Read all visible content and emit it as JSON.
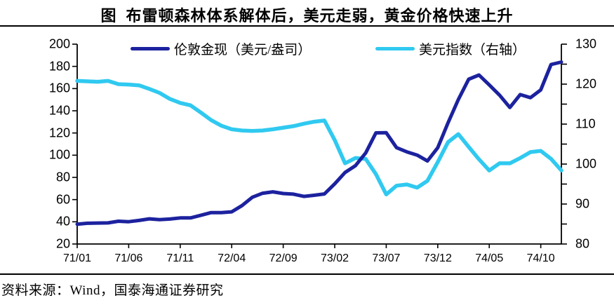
{
  "title": "图  布雷顿森林体系解体后，美元走弱，黄金价格快速上升",
  "source": "资料来源：Wind，国泰海通证券研究",
  "colors": {
    "gold_line": "#1c229e",
    "usd_line": "#30c9f0",
    "axis": "#000000"
  },
  "legend": [
    {
      "label": "伦敦金现（美元/盎司）",
      "series": "gold"
    },
    {
      "label": "美元指数（右轴）",
      "series": "usd"
    }
  ],
  "chart_data": {
    "type": "line",
    "title": "布雷顿森林体系解体后，美元走弱，黄金价格快速上升",
    "x_unit": "month",
    "x_start": "1971-01",
    "x_months": 48,
    "x_tick_labels": [
      "71/01",
      "71/06",
      "71/11",
      "72/04",
      "72/09",
      "73/02",
      "73/07",
      "73/12",
      "74/05",
      "74/10"
    ],
    "x_tick_month_index": [
      0,
      5,
      10,
      15,
      20,
      25,
      30,
      35,
      40,
      45
    ],
    "left_axis": {
      "min": 20,
      "max": 200,
      "ticks": [
        200,
        180,
        160,
        140,
        120,
        100,
        80,
        60,
        40,
        20
      ]
    },
    "right_axis": {
      "min": 80,
      "max": 130,
      "tick_step": 5,
      "labels": [
        130,
        120,
        110,
        100,
        90,
        80
      ]
    },
    "grid": false,
    "legend_position": "top-inside",
    "series": [
      {
        "name": "伦敦金现（美元/盎司）",
        "axis": "left",
        "values": [
          37.9,
          38.7,
          38.9,
          39.0,
          40.5,
          40.1,
          41.2,
          42.7,
          42.0,
          42.5,
          43.5,
          43.5,
          45.8,
          48.3,
          48.3,
          49.0,
          54.6,
          62.1,
          65.7,
          67.0,
          65.5,
          64.9,
          62.9,
          63.9,
          65.1,
          74.2,
          84.4,
          90.5,
          102.0,
          120.1,
          120.2,
          106.8,
          103.0,
          100.1,
          94.8,
          106.7,
          129.2,
          150.2,
          168.4,
          172.2,
          163.3,
          154.1,
          143.0,
          154.6,
          151.8,
          158.8,
          181.7,
          183.9
        ]
      },
      {
        "name": "美元指数（右轴）",
        "axis": "right",
        "values": [
          120.8,
          120.7,
          120.6,
          120.8,
          120.0,
          119.9,
          119.7,
          118.8,
          117.8,
          116.3,
          115.3,
          114.7,
          112.9,
          111.0,
          109.6,
          108.7,
          108.4,
          108.3,
          108.4,
          108.7,
          109.1,
          109.5,
          110.1,
          110.6,
          110.9,
          106.0,
          100.2,
          101.5,
          101.3,
          97.5,
          92.4,
          94.6,
          94.9,
          94.1,
          95.8,
          100.5,
          105.5,
          107.5,
          104.3,
          101.2,
          98.4,
          100.2,
          100.2,
          101.5,
          103.0,
          103.3,
          101.3,
          98.4
        ]
      }
    ]
  }
}
